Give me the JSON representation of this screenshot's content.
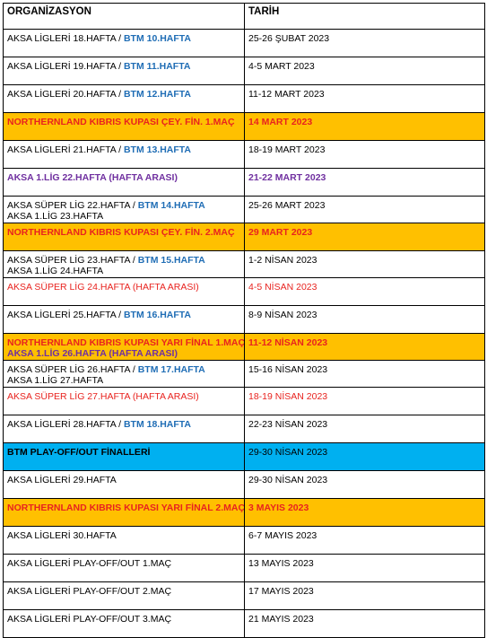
{
  "table": {
    "headers": {
      "organization": "ORGANİZASYON",
      "date": "TARİH"
    },
    "rows": [
      {
        "org_a": "AKSA LİGLERİ 18.HAFTA / ",
        "org_b": "BTM 10.HAFTA",
        "date": "25-26 ŞUBAT 2023"
      },
      {
        "org_a": "AKSA LİGLERİ 19.HAFTA / ",
        "org_b": "BTM 11.HAFTA",
        "date": "4-5 MART 2023"
      },
      {
        "org_a": "AKSA LİGLERİ 20.HAFTA / ",
        "org_b": "BTM 12.HAFTA",
        "date": "11-12 MART 2023"
      },
      {
        "org": "NORTHERNLAND KIBRIS KUPASI ÇEY. FİN. 1.MAÇ",
        "date": "14 MART 2023"
      },
      {
        "org_a": "AKSA LİGLERİ 21.HAFTA /  ",
        "org_b": "BTM 13.HAFTA",
        "date": "18-19 MART 2023"
      },
      {
        "org": "AKSA 1.LİG 22.HAFTA (HAFTA ARASI)",
        "date": "21-22 MART 2023"
      },
      {
        "org_a": "AKSA SÜPER LİG 22.HAFTA /  ",
        "org_b": "BTM 14.HAFTA",
        "org_c": "AKSA 1.LİG 23.HAFTA",
        "date": "25-26 MART 2023"
      },
      {
        "org": "NORTHERNLAND KIBRIS KUPASI ÇEY. FİN. 2.MAÇ",
        "date": "29 MART 2023"
      },
      {
        "org_a": "AKSA SÜPER LİG 23.HAFTA /  ",
        "org_b": "BTM 15.HAFTA",
        "org_c": "AKSA 1.LİG 24.HAFTA",
        "date": "1-2 NİSAN 2023"
      },
      {
        "org": "AKSA SÜPER LİG 24.HAFTA (HAFTA ARASI)",
        "date": "4-5 NİSAN 2023"
      },
      {
        "org_a": "AKSA LİGLERİ 25.HAFTA /  ",
        "org_b": "BTM 16.HAFTA",
        "date": "8-9 NİSAN 2023"
      },
      {
        "org_a": "NORTHERNLAND KIBRIS KUPASI YARI FİNAL 1.MAÇ",
        "org_c": "AKSA 1.LİG 26.HAFTA (HAFTA ARASI)",
        "date": "11-12 NİSAN 2023"
      },
      {
        "org_a": "AKSA SÜPER LİG 26.HAFTA /  ",
        "org_b": "BTM 17.HAFTA",
        "org_c": "AKSA 1.LİG 27.HAFTA",
        "date": "15-16 NİSAN 2023"
      },
      {
        "org": "AKSA SÜPER LİG 27.HAFTA (HAFTA ARASI)",
        "date": "18-19 NİSAN 2023"
      },
      {
        "org_a": "AKSA LİGLERİ 28.HAFTA /  ",
        "org_b": "BTM 18.HAFTA",
        "date": "22-23 NİSAN 2023"
      },
      {
        "org": "BTM PLAY-OFF/OUT FİNALLERİ",
        "date": "29-30 NİSAN 2023"
      },
      {
        "org": "AKSA LİGLERİ 29.HAFTA",
        "date": "29-30 NİSAN 2023"
      },
      {
        "org": "NORTHERNLAND KIBRIS KUPASI YARI FİNAL 2.MAÇ",
        "date": "3 MAYIS 2023"
      },
      {
        "org": "AKSA LİGLERİ 30.HAFTA",
        "date": "6-7 MAYIS 2023"
      },
      {
        "org": "AKSA LİGLERİ PLAY-OFF/OUT 1.MAÇ",
        "date": "13 MAYIS 2023"
      },
      {
        "org": "AKSA LİGLERİ PLAY-OFF/OUT 2.MAÇ",
        "date": "17 MAYIS 2023"
      },
      {
        "org": "AKSA LİGLERİ PLAY-OFF/OUT 3.MAÇ",
        "date": "21 MAYIS 2023"
      }
    ]
  },
  "colors": {
    "highlight_orange": "#ffc000",
    "highlight_cyan": "#00b0f0",
    "text_red": "#e8231f",
    "text_blue": "#1f6db5",
    "text_purple": "#7030a0"
  }
}
